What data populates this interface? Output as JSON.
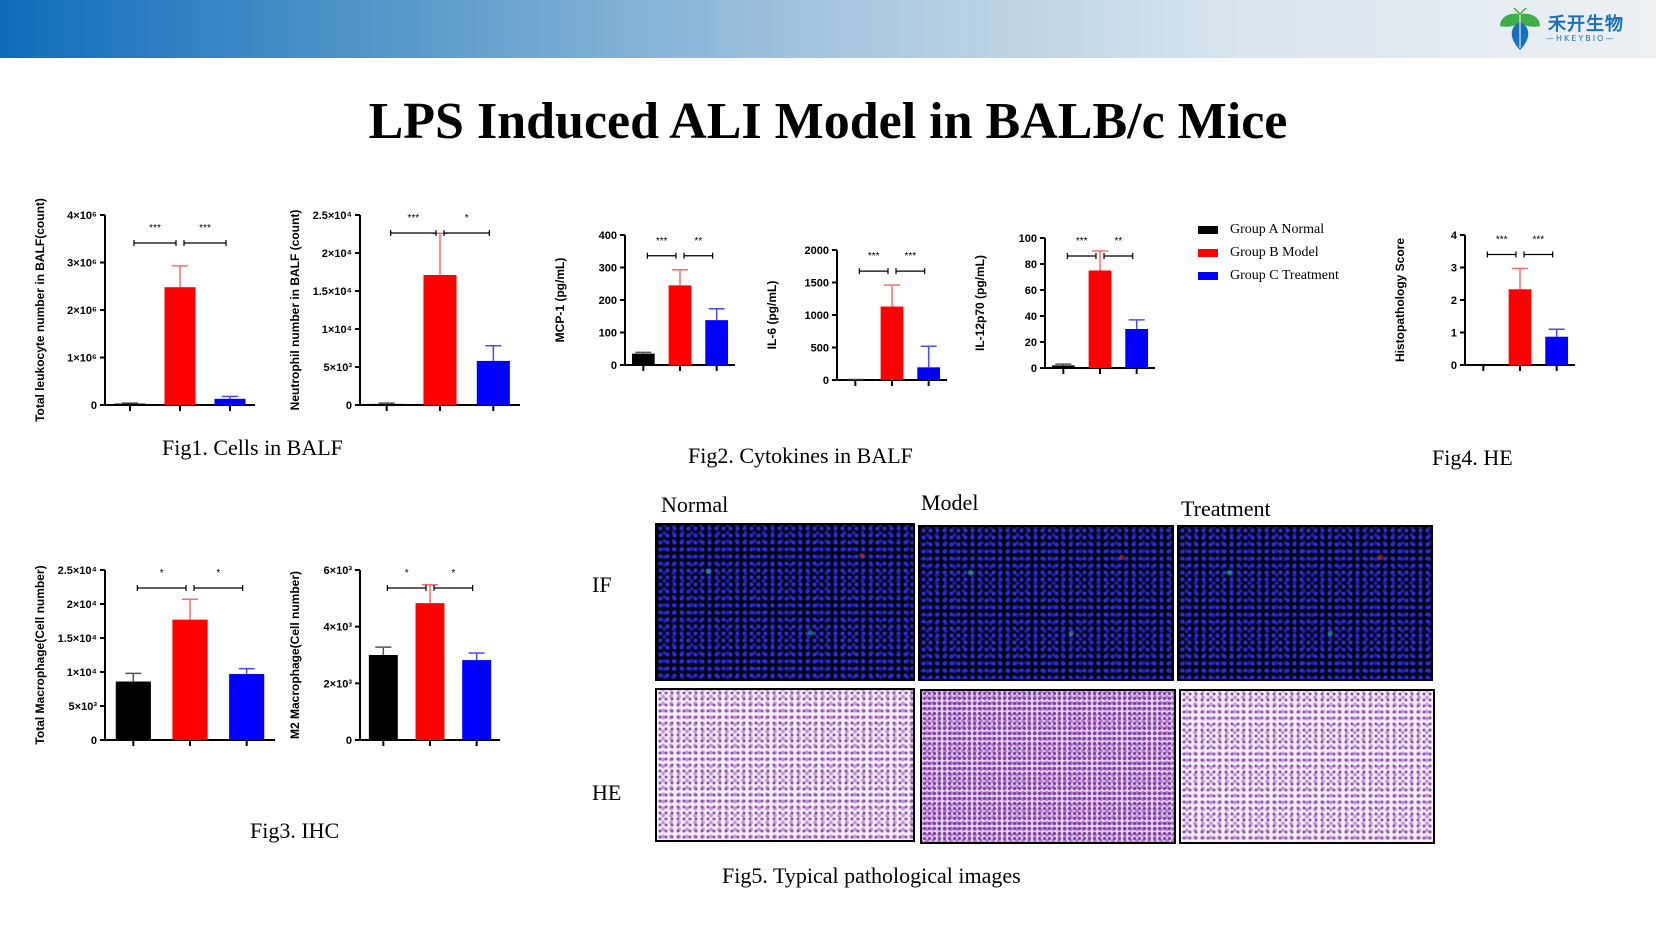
{
  "header": {
    "logo_cn": "禾开生物",
    "logo_en": "—HKEYBIO—",
    "title": "LPS Induced ALI Model in BALB/c Mice"
  },
  "legend": {
    "items": [
      {
        "label": "Group A Normal",
        "color": "#000000"
      },
      {
        "label": "Group B Model",
        "color": "#ff0000"
      },
      {
        "label": "Group C Treatment",
        "color": "#0000ff"
      }
    ]
  },
  "captions": {
    "fig1": "Fig1. Cells in BALF",
    "fig2": "Fig2. Cytokines in BALF",
    "fig3": "Fig3. IHC",
    "fig4": "Fig4. HE",
    "fig5": "Fig5. Typical pathological images"
  },
  "fig5": {
    "columns": [
      "Normal",
      "Model",
      "Treatment"
    ],
    "rows": [
      "IF",
      "HE"
    ]
  },
  "chart_data": [
    {
      "id": "fig1a",
      "type": "bar",
      "title": "",
      "ylabel": "Total leukocyte number in BALF(count)",
      "categories": [
        "Group A Normal",
        "Group B Model",
        "Group C Treatment"
      ],
      "values": [
        30000,
        2480000,
        130000
      ],
      "errors": [
        10000,
        450000,
        50000
      ],
      "ylim": [
        0,
        4000000
      ],
      "yticks": [
        "0",
        "1×10⁶",
        "2×10⁶",
        "3×10⁶",
        "4×10⁶"
      ],
      "significance": [
        "***",
        "***"
      ]
    },
    {
      "id": "fig1b",
      "type": "bar",
      "title": "",
      "ylabel": "Neutrophil number in BALF (count)",
      "categories": [
        "Group A Normal",
        "Group B Model",
        "Group C Treatment"
      ],
      "values": [
        150,
        17100,
        5800
      ],
      "errors": [
        100,
        5500,
        2000
      ],
      "ylim": [
        0,
        25000
      ],
      "yticks": [
        "0",
        "5×10³",
        "1×10⁴",
        "1.5×10⁴",
        "2×10⁴",
        "2.5×10⁴"
      ],
      "significance": [
        "***",
        "*"
      ]
    },
    {
      "id": "fig2a",
      "type": "bar",
      "title": "",
      "ylabel": "MCP-1 (pg/mL)",
      "categories": [
        "Group A Normal",
        "Group B Model",
        "Group C Treatment"
      ],
      "values": [
        35,
        245,
        138
      ],
      "errors": [
        4,
        48,
        35
      ],
      "ylim": [
        0,
        400
      ],
      "yticks": [
        "0",
        "100",
        "200",
        "300",
        "400"
      ],
      "significance": [
        "***",
        "**"
      ]
    },
    {
      "id": "fig2b",
      "type": "bar",
      "title": "",
      "ylabel": "IL-6 (pg/mL)",
      "categories": [
        "Group A Normal",
        "Group B Model",
        "Group C Treatment"
      ],
      "values": [
        5,
        1130,
        195
      ],
      "errors": [
        3,
        330,
        325
      ],
      "ylim": [
        0,
        2000
      ],
      "yticks": [
        "0",
        "500",
        "1000",
        "1500",
        "2000"
      ],
      "significance": [
        "***",
        "***"
      ]
    },
    {
      "id": "fig2c",
      "type": "bar",
      "title": "",
      "ylabel": "IL-12p70 (pg/mL)",
      "categories": [
        "Group A Normal",
        "Group B Model",
        "Group C Treatment"
      ],
      "values": [
        2,
        75,
        30
      ],
      "errors": [
        1,
        15,
        7
      ],
      "ylim": [
        0,
        100
      ],
      "yticks": [
        "0",
        "20",
        "40",
        "60",
        "80",
        "100"
      ],
      "significance": [
        "***",
        "**"
      ]
    },
    {
      "id": "fig3a",
      "type": "bar",
      "title": "",
      "ylabel": "Total  Macrophage(Cell number)",
      "categories": [
        "Group A Normal",
        "Group B Model",
        "Group C Treatment"
      ],
      "values": [
        8600,
        17700,
        9700
      ],
      "errors": [
        1200,
        3000,
        800
      ],
      "ylim": [
        0,
        25000
      ],
      "yticks": [
        "0",
        "5×10³",
        "1×10⁴",
        "1.5×10⁴",
        "2×10⁴",
        "2.5×10⁴"
      ],
      "significance": [
        "*",
        "*"
      ]
    },
    {
      "id": "fig3b",
      "type": "bar",
      "title": "",
      "ylabel": "M2 Macrophage(Cell number)",
      "categories": [
        "Group A Normal",
        "Group B Model",
        "Group C Treatment"
      ],
      "values": [
        3000,
        4830,
        2820
      ],
      "errors": [
        280,
        650,
        250
      ],
      "ylim": [
        0,
        6000
      ],
      "yticks": [
        "0",
        "2×10³",
        "4×10³",
        "6×10³"
      ],
      "significance": [
        "*",
        "*"
      ]
    },
    {
      "id": "fig4",
      "type": "bar",
      "title": "",
      "ylabel": "Histopathology Score",
      "categories": [
        "Group A Normal",
        "Group B Model",
        "Group C Treatment"
      ],
      "values": [
        0,
        2.33,
        0.87
      ],
      "errors": [
        0,
        0.64,
        0.23
      ],
      "ylim": [
        0,
        4
      ],
      "yticks": [
        "0",
        "1",
        "2",
        "3",
        "4"
      ],
      "significance": [
        "***",
        "***"
      ]
    }
  ]
}
